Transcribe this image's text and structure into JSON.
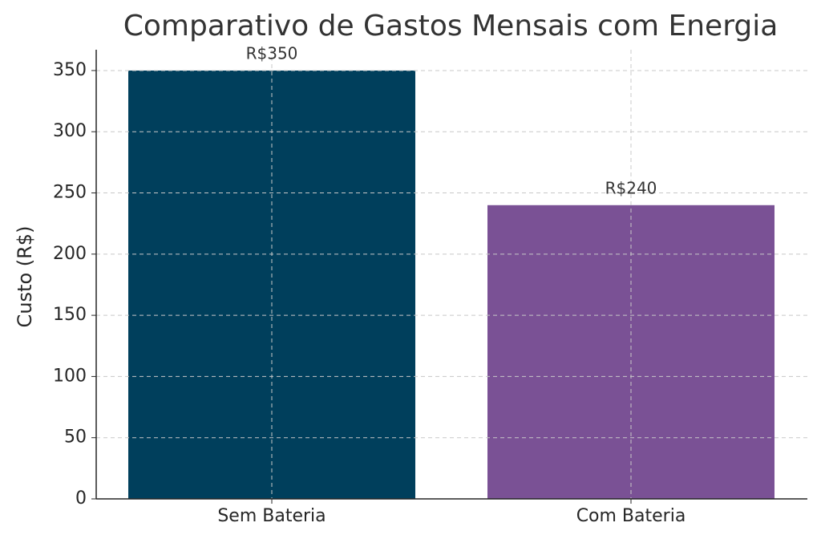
{
  "chart_data": {
    "type": "bar",
    "title": "Comparativo de Gastos Mensais com Energia",
    "y_label": "Custo (R$)",
    "categories": [
      "Sem Bateria",
      "Com Bateria"
    ],
    "values": [
      350,
      240
    ],
    "value_labels": [
      "R$350",
      "R$240"
    ],
    "colors": [
      "#003f5c",
      "#7a5195"
    ],
    "ylim": [
      0,
      367
    ],
    "yticks": [
      0,
      50,
      100,
      150,
      200,
      250,
      300,
      350
    ],
    "grid": true
  }
}
